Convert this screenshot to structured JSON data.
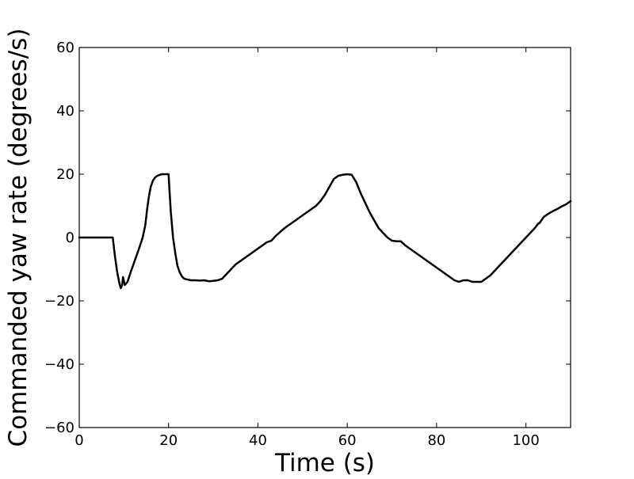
{
  "chart_data": {
    "type": "line",
    "title": "",
    "xlabel": "Time (s)",
    "ylabel": "Commanded yaw rate (degrees/s)",
    "xlim": [
      0,
      110
    ],
    "ylim": [
      -60,
      60
    ],
    "xticks": [
      0,
      20,
      40,
      60,
      80,
      100
    ],
    "yticks": [
      -60,
      -40,
      -20,
      0,
      20,
      40,
      60
    ],
    "xtick_labels": [
      "0",
      "20",
      "40",
      "60",
      "80",
      "100"
    ],
    "ytick_labels": [
      "−60",
      "−40",
      "−20",
      "0",
      "20",
      "40",
      "60"
    ],
    "grid": false,
    "legend": "none",
    "line_color": "#000000",
    "series": [
      {
        "x": [
          0,
          7.5,
          8.0,
          8.5,
          9.0,
          9.3,
          9.6,
          9.8,
          10.2,
          10.8,
          11.5,
          12.5,
          13.5,
          14.2,
          14.8,
          15.2,
          15.6,
          16.0,
          16.5,
          17.0,
          17.5,
          18.0,
          18.5,
          19.0,
          19.5,
          20.0,
          20.2,
          20.5,
          21.0,
          21.5,
          22.0,
          22.5,
          23.0,
          23.5,
          24.0,
          25.0,
          26.0,
          27.0,
          28.0,
          29.0,
          30.0,
          31.0,
          32.0,
          33.0,
          34.0,
          35.0,
          36.0,
          37.0,
          38.0,
          39.0,
          40.0,
          41.0,
          42.0,
          43.0,
          44.0,
          45.0,
          46.0,
          47.0,
          48.0,
          49.0,
          50.0,
          51.0,
          52.0,
          53.0,
          54.0,
          55.0,
          56.0,
          57.0,
          58.0,
          59.0,
          60.0,
          61.0,
          62.0,
          63.0,
          64.0,
          65.0,
          66.0,
          67.0,
          68.0,
          69.0,
          70.0,
          71.0,
          72.0,
          73.0,
          74.0,
          75.0,
          76.0,
          77.0,
          78.0,
          79.0,
          80.0,
          81.0,
          82.0,
          83.0,
          84.0,
          85.0,
          86.0,
          87.0,
          88.0,
          89.0,
          90.0,
          91.0,
          92.0,
          93.0,
          94.0,
          95.0,
          96.0,
          97.0,
          98.0,
          99.0,
          100.0,
          101.0,
          102.0,
          102.8,
          103.0,
          103.5,
          104.0,
          105.0,
          106.0,
          107.0,
          108.0,
          109.0,
          110.0
        ],
        "y": [
          0,
          0,
          -6,
          -11,
          -14.5,
          -16,
          -15,
          -12.5,
          -15,
          -14,
          -11,
          -7,
          -3,
          0,
          4,
          9,
          13,
          16,
          18,
          19,
          19.5,
          19.8,
          20,
          20,
          20,
          20,
          15,
          8,
          0,
          -5,
          -9,
          -11,
          -12.3,
          -13,
          -13.2,
          -13.5,
          -13.5,
          -13.6,
          -13.5,
          -13.8,
          -13.7,
          -13.5,
          -13,
          -11.5,
          -10,
          -8.5,
          -7.5,
          -6.5,
          -5.5,
          -4.5,
          -3.5,
          -2.5,
          -1.5,
          -1,
          0.5,
          1.8,
          3,
          4,
          5,
          6,
          7,
          8,
          9,
          10,
          11.5,
          13.5,
          16,
          18.5,
          19.5,
          19.8,
          20,
          19.8,
          17.5,
          14,
          11,
          8,
          5.5,
          3,
          1.5,
          0,
          -1,
          -1.2,
          -1.2,
          -2.5,
          -3.5,
          -4.5,
          -5.5,
          -6.5,
          -7.5,
          -8.5,
          -9.5,
          -10.5,
          -11.5,
          -12.5,
          -13.5,
          -14,
          -13.5,
          -13.5,
          -14,
          -14,
          -14,
          -13,
          -12,
          -10.5,
          -9,
          -7.5,
          -6,
          -4.5,
          -3,
          -1.5,
          0,
          1.5,
          3,
          4.5,
          4.5,
          5.5,
          6.5,
          7.5,
          8.3,
          9,
          9.8,
          10.5,
          11.5
        ]
      }
    ]
  }
}
